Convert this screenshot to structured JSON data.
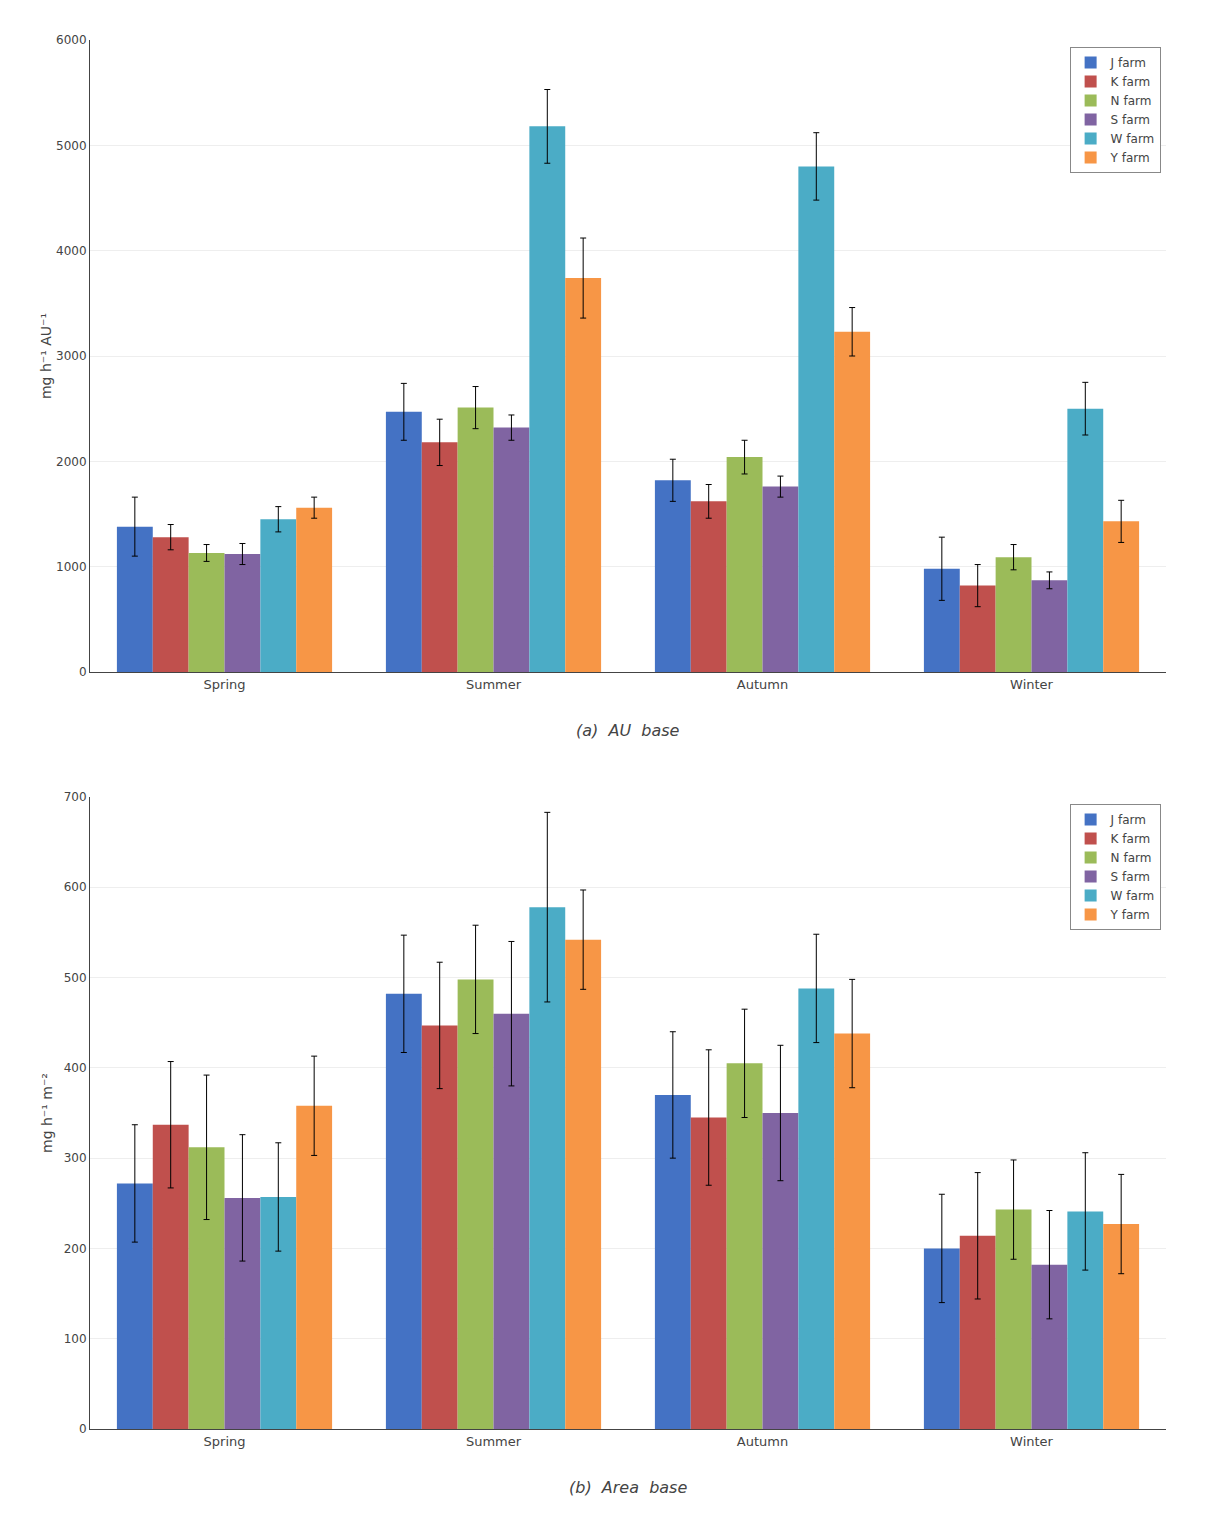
{
  "chart_data": [
    {
      "type": "bar",
      "title": "(a)  AU  base",
      "ylabel": "mg h⁻¹ AU⁻¹",
      "categories": [
        "Spring",
        "Summer",
        "Autumn",
        "Winter"
      ],
      "series": [
        {
          "name": "J farm",
          "color": "#4472C4",
          "values": [
            1380,
            2470,
            1820,
            980
          ],
          "errors": [
            280,
            270,
            200,
            300
          ]
        },
        {
          "name": "K farm",
          "color": "#C0504D",
          "values": [
            1280,
            2180,
            1620,
            820
          ],
          "errors": [
            120,
            220,
            160,
            200
          ]
        },
        {
          "name": "N farm",
          "color": "#9BBB59",
          "values": [
            1130,
            2510,
            2040,
            1090
          ],
          "errors": [
            80,
            200,
            160,
            120
          ]
        },
        {
          "name": "S farm",
          "color": "#8064A2",
          "values": [
            1120,
            2320,
            1760,
            870
          ],
          "errors": [
            100,
            120,
            100,
            80
          ]
        },
        {
          "name": "W farm",
          "color": "#4BACC6",
          "values": [
            1450,
            5180,
            4800,
            2500
          ],
          "errors": [
            120,
            350,
            320,
            250
          ]
        },
        {
          "name": "Y farm",
          "color": "#F79646",
          "values": [
            1560,
            3740,
            3230,
            1430
          ],
          "errors": [
            100,
            380,
            230,
            200
          ]
        }
      ],
      "ylim": [
        0,
        6000
      ],
      "yticks": [
        0,
        1000,
        2000,
        3000,
        4000,
        5000,
        6000
      ],
      "grid": true,
      "legend": "upper right"
    },
    {
      "type": "bar",
      "title": "(b)  Area  base",
      "ylabel": "mg h⁻¹ m⁻²",
      "categories": [
        "Spring",
        "Summer",
        "Autumn",
        "Winter"
      ],
      "series": [
        {
          "name": "J farm",
          "color": "#4472C4",
          "values": [
            272,
            482,
            370,
            200
          ],
          "errors": [
            65,
            65,
            70,
            60
          ]
        },
        {
          "name": "K farm",
          "color": "#C0504D",
          "values": [
            337,
            447,
            345,
            214
          ],
          "errors": [
            70,
            70,
            75,
            70
          ]
        },
        {
          "name": "N farm",
          "color": "#9BBB59",
          "values": [
            312,
            498,
            405,
            243
          ],
          "errors": [
            80,
            60,
            60,
            55
          ]
        },
        {
          "name": "S farm",
          "color": "#8064A2",
          "values": [
            256,
            460,
            350,
            182
          ],
          "errors": [
            70,
            80,
            75,
            60
          ]
        },
        {
          "name": "W farm",
          "color": "#4BACC6",
          "values": [
            257,
            578,
            488,
            241
          ],
          "errors": [
            60,
            105,
            60,
            65
          ]
        },
        {
          "name": "Y farm",
          "color": "#F79646",
          "values": [
            358,
            542,
            438,
            227
          ],
          "errors": [
            55,
            55,
            60,
            55
          ]
        }
      ],
      "ylim": [
        0,
        700
      ],
      "yticks": [
        0,
        100,
        200,
        300,
        400,
        500,
        600,
        700
      ],
      "grid": true,
      "legend": "upper right"
    }
  ]
}
